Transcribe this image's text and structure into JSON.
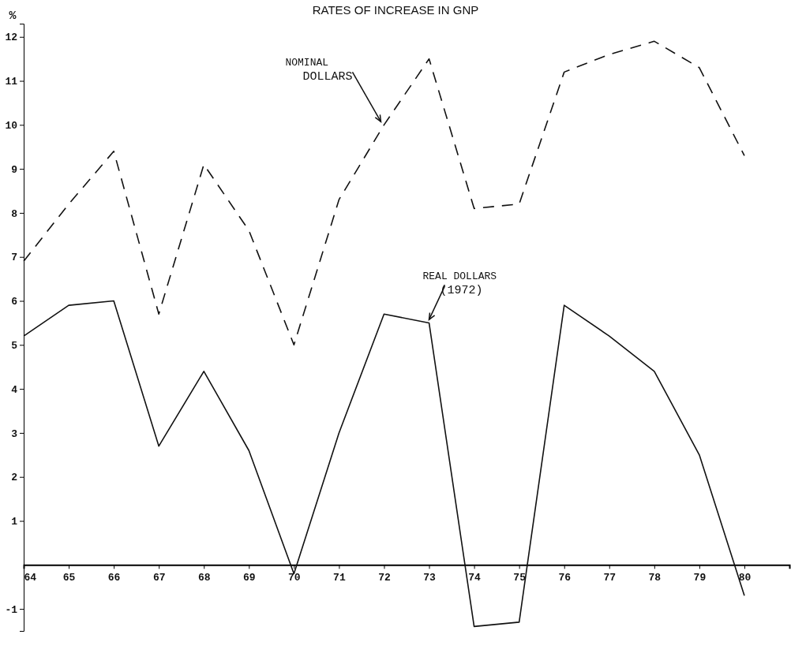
{
  "chart_data": {
    "type": "line",
    "title": "RATES OF INCREASE IN GNP",
    "ylabel": "%",
    "x": [
      1964,
      1965,
      1966,
      1967,
      1968,
      1969,
      1970,
      1971,
      1972,
      1973,
      1974,
      1975,
      1976,
      1977,
      1978,
      1979,
      1980
    ],
    "series": [
      {
        "color": "#111111",
        "line_style": "dashed",
        "values": [
          6.9,
          8.2,
          9.4,
          5.7,
          9.1,
          7.6,
          5.0,
          8.3,
          10.0,
          11.5,
          8.1,
          8.2,
          11.2,
          11.6,
          11.9,
          11.3,
          9.3
        ]
      },
      {
        "color": "#111111",
        "line_style": "solid",
        "values": [
          5.2,
          5.9,
          6.0,
          2.7,
          4.4,
          2.6,
          -0.2,
          3.0,
          5.7,
          5.5,
          -1.4,
          -1.3,
          5.9,
          5.2,
          4.4,
          2.5,
          -0.7
        ]
      }
    ],
    "xlim": [
      1964,
      1981
    ],
    "xticks": [
      {
        "value": 1964,
        "label": "64"
      },
      {
        "value": 1965,
        "label": "65"
      },
      {
        "value": 1966,
        "label": "66"
      },
      {
        "value": 1967,
        "label": "67"
      },
      {
        "value": 1968,
        "label": "68"
      },
      {
        "value": 1969,
        "label": "69"
      },
      {
        "value": 1970,
        "label": "70"
      },
      {
        "value": 1971,
        "label": "71"
      },
      {
        "value": 1972,
        "label": "72"
      },
      {
        "value": 1973,
        "label": "73"
      },
      {
        "value": 1974,
        "label": "74"
      },
      {
        "value": 1975,
        "label": "75"
      },
      {
        "value": 1976,
        "label": "76"
      },
      {
        "value": 1977,
        "label": "77"
      },
      {
        "value": 1978,
        "label": "78"
      },
      {
        "value": 1979,
        "label": "79"
      },
      {
        "value": 1980,
        "label": "80"
      }
    ],
    "ylim": [
      -1.5,
      12.3
    ],
    "yticks": [
      -1,
      1,
      2,
      3,
      4,
      5,
      6,
      7,
      8,
      9,
      10,
      11,
      12
    ],
    "grid": false,
    "marker": "none",
    "annotations": [
      {
        "text": "NOMINAL DOLLARS",
        "x": 1972,
        "y": 10.0
      },
      {
        "text": "REAL DOLLARS (1972)",
        "x": 1973,
        "y": 5.5
      }
    ]
  }
}
